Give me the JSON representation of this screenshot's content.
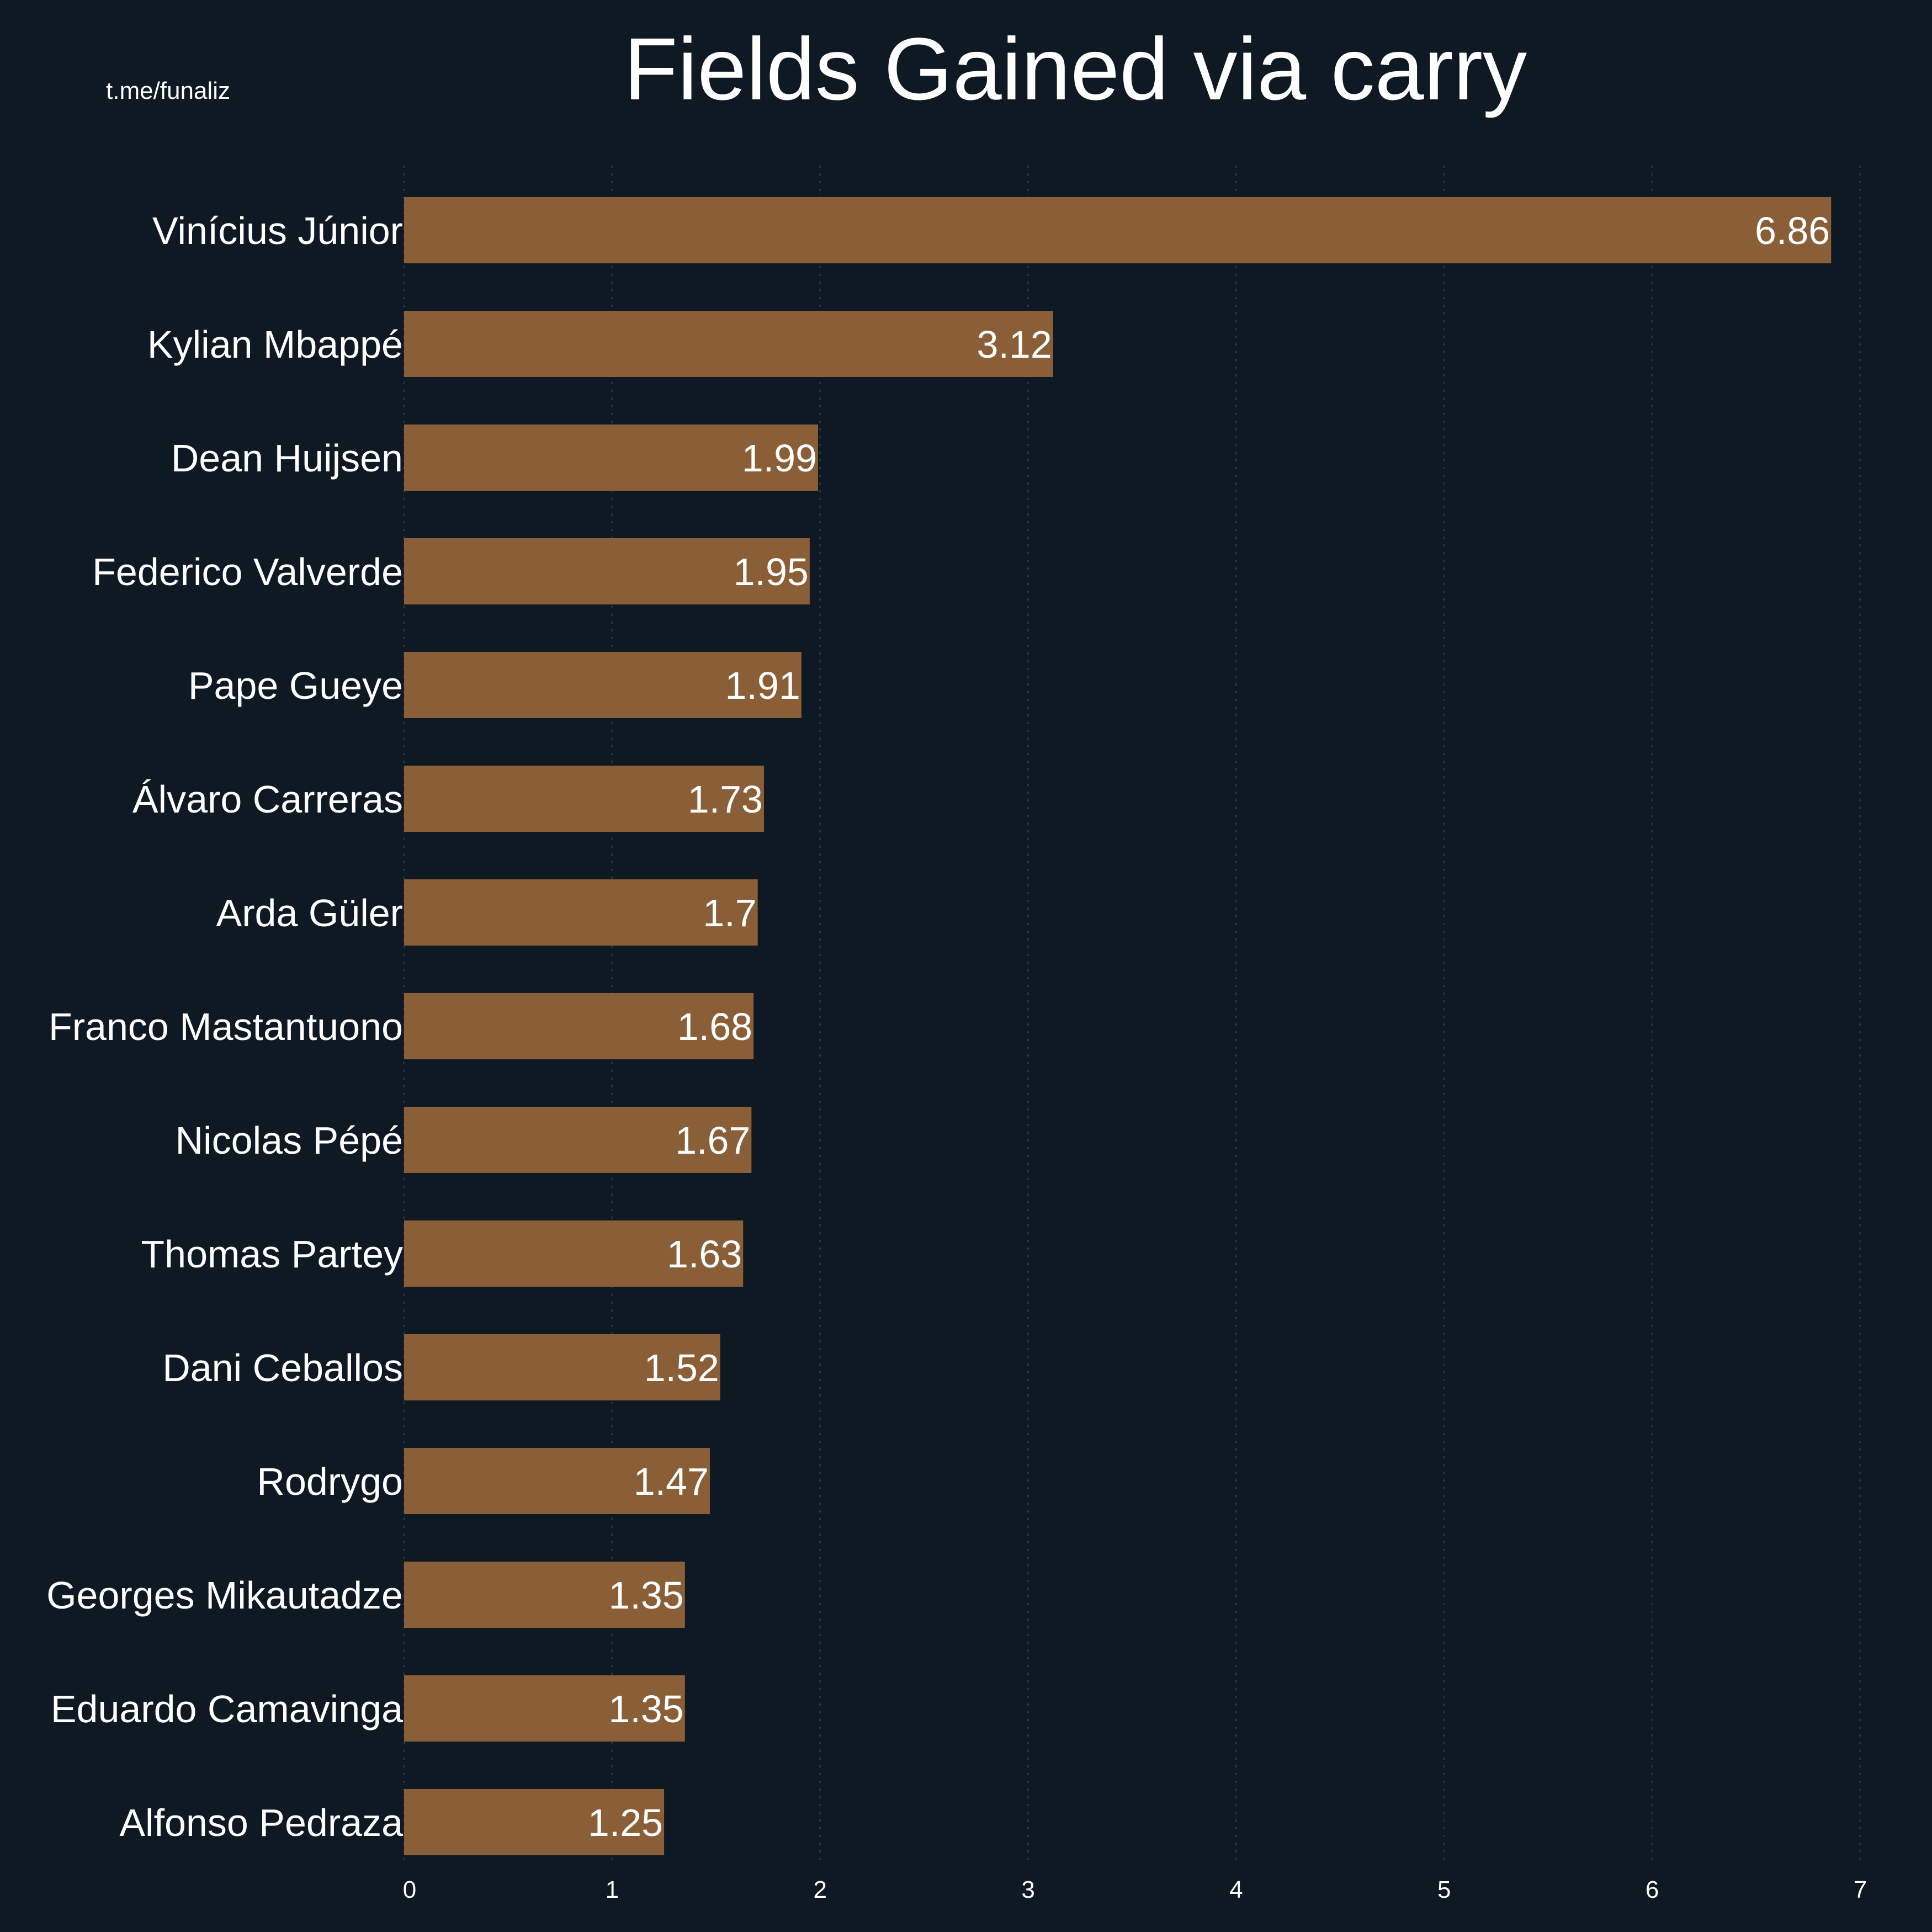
{
  "watermark": "t.me/funaliz",
  "colors": {
    "background": "#0f1923",
    "bar": "#8a5f38",
    "text": "#ffffff",
    "grid": "#2a3440"
  },
  "chart_data": {
    "type": "bar",
    "orientation": "horizontal",
    "title": "Fields Gained via carry",
    "xlabel": "",
    "ylabel": "",
    "xlim": [
      0,
      7
    ],
    "xticks": [
      0,
      1,
      2,
      3,
      4,
      5,
      6,
      7
    ],
    "grid": "vertical dotted",
    "data_labels": true,
    "categories": [
      "Vinícius Júnior",
      "Kylian Mbappé",
      "Dean Huijsen",
      "Federico Valverde",
      "Pape Gueye",
      "Álvaro Carreras",
      "Arda Güler",
      "Franco Mastantuono",
      "Nicolas Pépé",
      "Thomas Partey",
      "Dani Ceballos",
      "Rodrygo",
      "Georges Mikautadze",
      "Eduardo Camavinga",
      "Alfonso Pedraza"
    ],
    "values": [
      6.86,
      3.12,
      1.99,
      1.95,
      1.91,
      1.73,
      1.7,
      1.68,
      1.67,
      1.63,
      1.52,
      1.47,
      1.35,
      1.35,
      1.25
    ]
  }
}
